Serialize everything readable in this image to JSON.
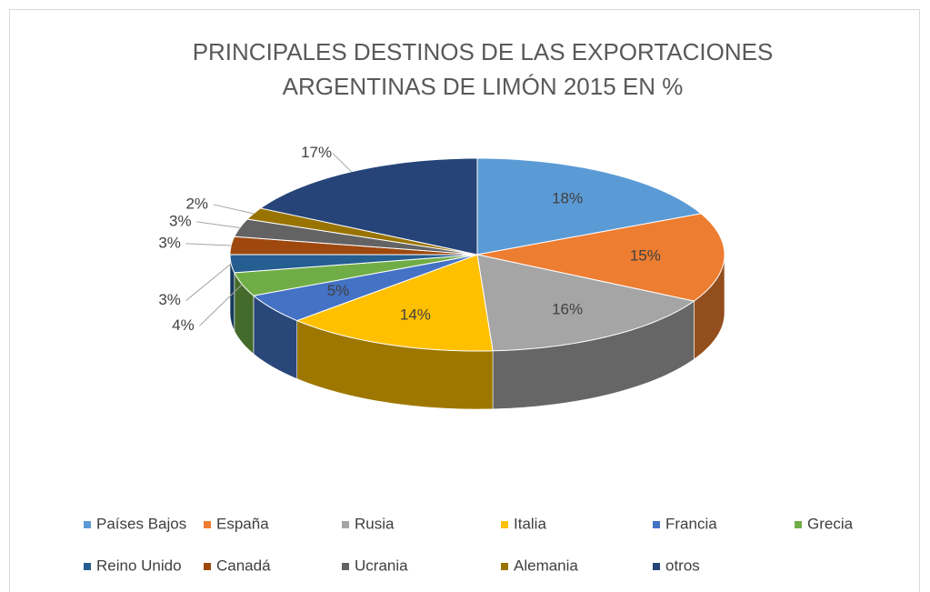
{
  "chart_data": {
    "type": "pie",
    "title": "PRINCIPALES DESTINOS DE LAS EXPORTACIONES ARGENTINAS DE LIMÓN 2015 EN %",
    "categories": [
      "Países Bajos",
      "España",
      "Rusia",
      "Italia",
      "Francia",
      "Grecia",
      "Reino Unido",
      "Canadá",
      "Ucrania",
      "Alemania",
      "otros"
    ],
    "values": [
      18,
      15,
      16,
      14,
      5,
      4,
      3,
      3,
      3,
      2,
      17
    ],
    "value_labels": [
      "18%",
      "15%",
      "16%",
      "14%",
      "5%",
      "4%",
      "3%",
      "3%",
      "3%",
      "2%",
      "17%"
    ],
    "colors": [
      "#5b9bd5",
      "#ed7d31",
      "#a5a5a5",
      "#ffc000",
      "#4472c4",
      "#70ad47",
      "#255e91",
      "#9e480e",
      "#636363",
      "#997300",
      "#264478"
    ],
    "legend": "bottom"
  }
}
